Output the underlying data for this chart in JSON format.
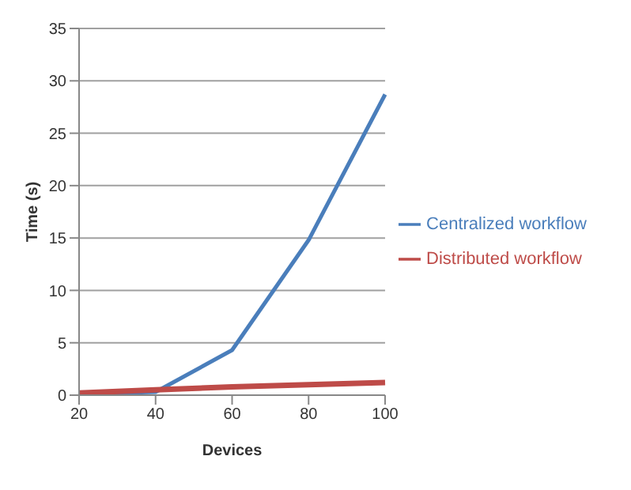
{
  "chart_data": {
    "type": "line",
    "xlabel": "Devices",
    "ylabel": "Time (s)",
    "categories": [
      "20",
      "40",
      "60",
      "80",
      "100"
    ],
    "series": [
      {
        "name": "Centralized workflow",
        "color": "#4a7ebb",
        "values": [
          0.1,
          0.3,
          4.3,
          14.8,
          28.7
        ]
      },
      {
        "name": "Distributed workflow",
        "color": "#be4b48",
        "values": [
          0.2,
          0.5,
          0.8,
          1.0,
          1.2
        ]
      }
    ],
    "ylim": [
      0,
      35
    ],
    "yticks": [
      0,
      5,
      10,
      15,
      20,
      25,
      30,
      35
    ],
    "grid": "y",
    "legend": "right",
    "marker": "none"
  }
}
